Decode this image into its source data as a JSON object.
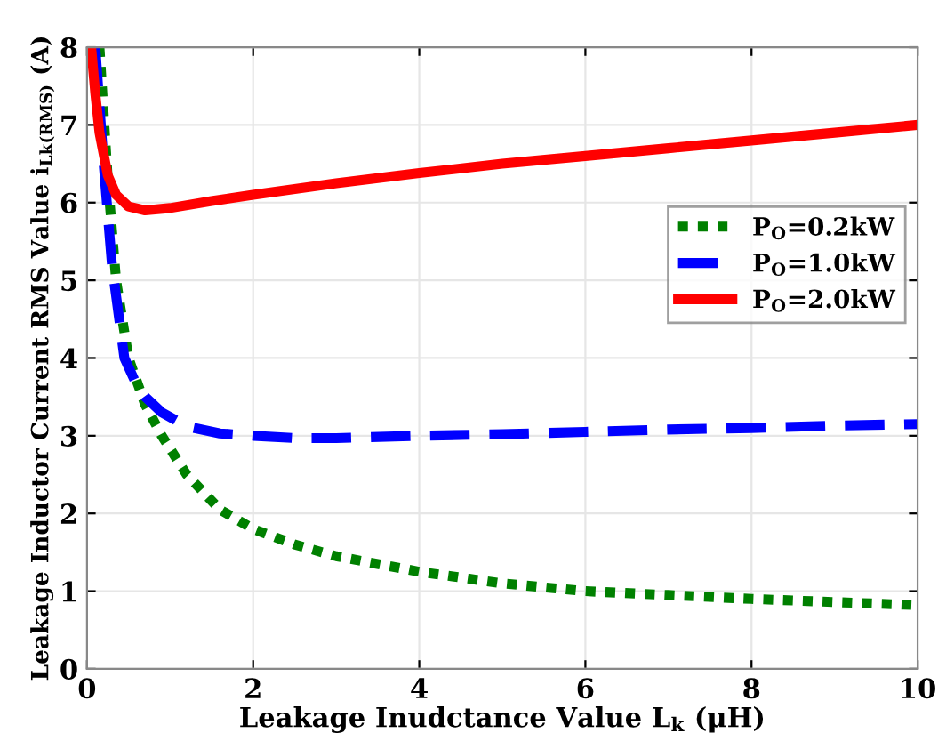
{
  "chart_data": {
    "type": "line",
    "xlabel": "Leakage Inudctance Value L$_{k}$ (μH)",
    "ylabel": "Leakage Inductor Current RMS Value i$_{Lk(RMS)}$ (A)",
    "xlim": [
      0,
      10
    ],
    "ylim": [
      0,
      8
    ],
    "xticks": [
      0,
      2,
      4,
      6,
      8,
      10
    ],
    "yticks": [
      0,
      1,
      2,
      3,
      4,
      5,
      6,
      7,
      8
    ],
    "grid": true,
    "legend": "right",
    "series": [
      {
        "name": "P$_{O}$=0.2kW",
        "color": "#008000",
        "line_style": "dotted",
        "x": [
          0.15,
          0.25,
          0.35,
          0.5,
          0.7,
          0.9,
          1.2,
          1.6,
          2,
          2.5,
          3,
          4,
          5,
          6,
          7,
          8,
          9,
          10
        ],
        "values": [
          8,
          6.3,
          5.0,
          4.0,
          3.4,
          3.0,
          2.5,
          2.05,
          1.8,
          1.6,
          1.45,
          1.25,
          1.1,
          1.0,
          0.95,
          0.9,
          0.86,
          0.82
        ]
      },
      {
        "name": "P$_{O}$=1.0kW",
        "color": "#0000ff",
        "line_style": "dashed",
        "x": [
          0.1,
          0.2,
          0.3,
          0.45,
          0.6,
          0.7,
          0.9,
          1.2,
          1.6,
          2,
          2.5,
          3,
          4,
          5,
          6,
          7,
          8,
          9,
          10
        ],
        "values": [
          8,
          6.5,
          5.2,
          4.0,
          3.65,
          3.5,
          3.3,
          3.12,
          3.03,
          3.0,
          2.97,
          2.97,
          3.0,
          3.02,
          3.05,
          3.08,
          3.1,
          3.13,
          3.15
        ]
      },
      {
        "name": "P$_{O}$=2.0kW",
        "color": "#ff0000",
        "line_style": "solid",
        "x": [
          0.05,
          0.1,
          0.15,
          0.25,
          0.35,
          0.5,
          0.7,
          1,
          1.5,
          2,
          3,
          4,
          5,
          6,
          7,
          8,
          9,
          10
        ],
        "values": [
          8,
          7.4,
          6.9,
          6.35,
          6.1,
          5.95,
          5.9,
          5.93,
          6.02,
          6.1,
          6.25,
          6.38,
          6.5,
          6.6,
          6.7,
          6.8,
          6.9,
          7.0
        ]
      }
    ]
  }
}
